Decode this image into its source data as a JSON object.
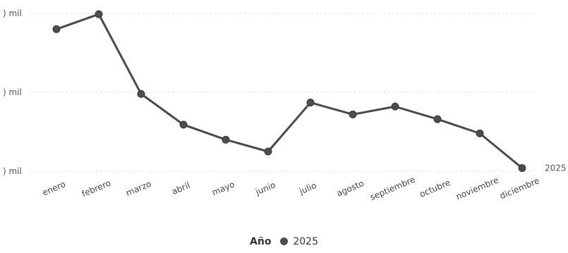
{
  "chart_data": {
    "type": "line",
    "title": "",
    "xlabel": "",
    "ylabel": "",
    "categories": [
      "enero",
      "febrero",
      "marzo",
      "abril",
      "mayo",
      "junio",
      "julio",
      "agosto",
      "septiembre",
      "octubre",
      "noviembre",
      "diciembre"
    ],
    "yticks": [
      {
        "label": ") mil",
        "value": 0
      },
      {
        "label": ") mil",
        "value": 100
      },
      {
        "label": ") mil",
        "value": 200
      }
    ],
    "ylim": [
      0,
      200
    ],
    "grid": true,
    "legend": {
      "title": "Año",
      "position": "bottom"
    },
    "series": [
      {
        "name": "2025",
        "color": "#4d4d4d",
        "values": [
          180,
          199,
          98,
          59,
          40,
          25,
          87,
          72,
          82,
          66,
          48,
          4
        ]
      }
    ]
  }
}
